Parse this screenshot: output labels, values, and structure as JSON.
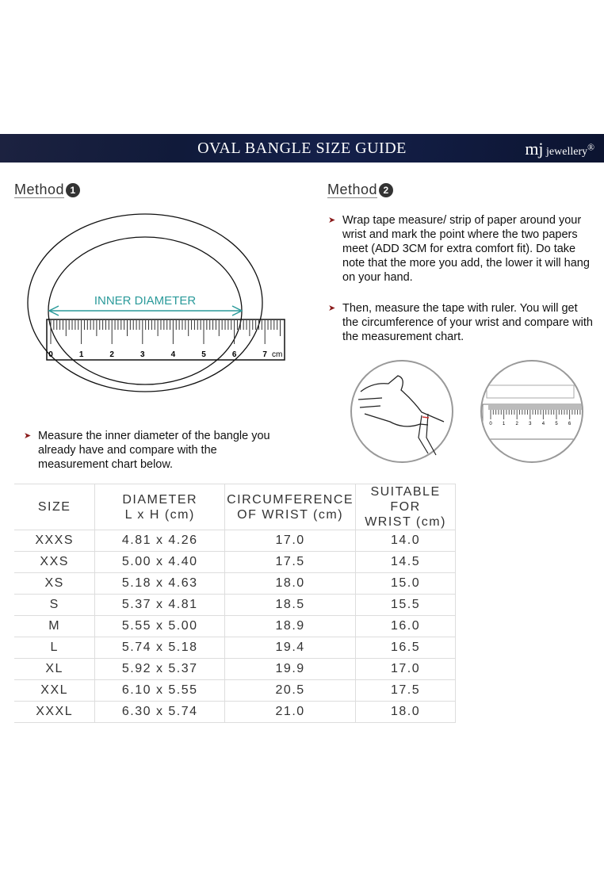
{
  "header": {
    "title": "OVAL BANGLE SIZE GUIDE",
    "logo": "mj jewellery"
  },
  "method1": {
    "label": "Method",
    "number": "1",
    "diagram_label": "INNER DIAMETER",
    "ruler_labels": [
      "0",
      "1",
      "2",
      "3",
      "4",
      "5",
      "6",
      "7"
    ],
    "ruler_unit": "cm",
    "instruction": "Measure the inner diameter of the bangle you already have and compare with the measurement chart below."
  },
  "method2": {
    "label": "Method",
    "number": "2",
    "steps": [
      "Wrap tape measure/ strip of paper around your wrist and mark the point where the two papers meet (ADD 3CM for extra comfort fit). Do take note that the more you add, the lower it will hang on your hand.",
      "Then, measure the tape with ruler. You will get the circumference of your wrist and compare with the measurement chart."
    ],
    "ruler_labels": [
      "0",
      "1",
      "2",
      "3",
      "4",
      "5",
      "6"
    ]
  },
  "table": {
    "headers": [
      "SIZE",
      "DIAMETER\nL x H (cm)",
      "CIRCUMFERENCE\nOF WRIST (cm)",
      "SUITABLE FOR\nWRIST (cm)"
    ],
    "rows": [
      [
        "XXXS",
        "4.81 x 4.26",
        "17.0",
        "14.0"
      ],
      [
        "XXS",
        "5.00 x 4.40",
        "17.5",
        "14.5"
      ],
      [
        "XS",
        "5.18 x 4.63",
        "18.0",
        "15.0"
      ],
      [
        "S",
        "5.37 x 4.81",
        "18.5",
        "15.5"
      ],
      [
        "M",
        "5.55 x 5.00",
        "18.9",
        "16.0"
      ],
      [
        "L",
        "5.74 x 5.18",
        "19.4",
        "16.5"
      ],
      [
        "XL",
        "5.92 x 5.37",
        "19.9",
        "17.0"
      ],
      [
        "XXL",
        "6.10 x 5.55",
        "20.5",
        "17.5"
      ],
      [
        "XXXL",
        "6.30 x 5.74",
        "21.0",
        "18.0"
      ]
    ]
  },
  "colors": {
    "banner": "#121c3e",
    "accent_teal": "#2a9a9a",
    "arrow": "#8a1b1b"
  }
}
